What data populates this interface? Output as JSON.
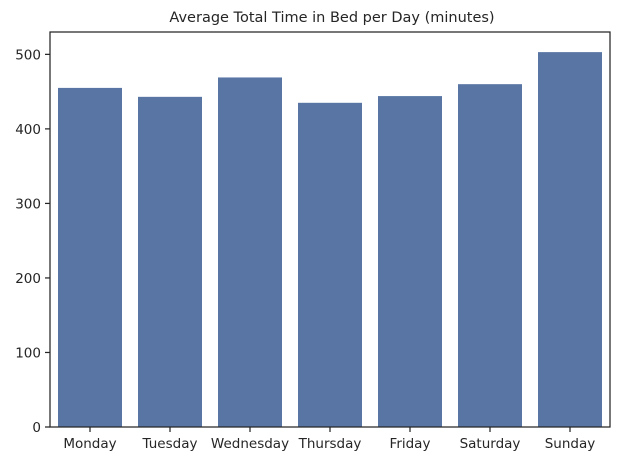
{
  "chart_data": {
    "type": "bar",
    "title": "Average Total Time in Bed per Day (minutes)",
    "xlabel": "",
    "ylabel": "",
    "categories": [
      "Monday",
      "Tuesday",
      "Wednesday",
      "Thursday",
      "Friday",
      "Saturday",
      "Sunday"
    ],
    "values": [
      455,
      443,
      469,
      435,
      444,
      460,
      503
    ],
    "ylim": [
      0,
      530
    ],
    "yticks": [
      0,
      100,
      200,
      300,
      400,
      500
    ],
    "grid": false,
    "bar_color": "#5875a4"
  }
}
